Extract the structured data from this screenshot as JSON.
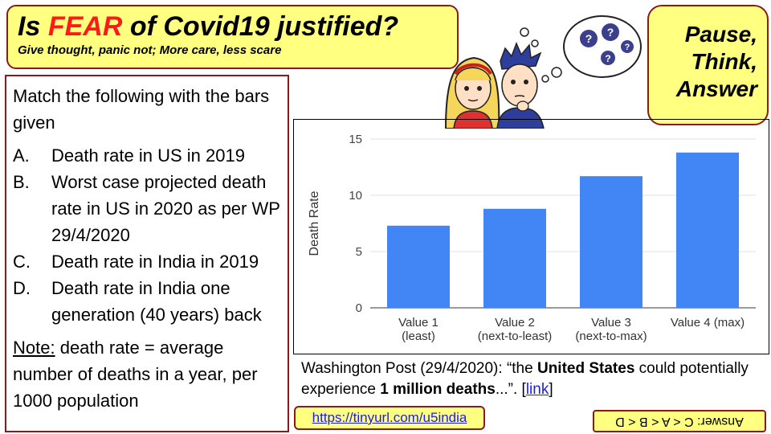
{
  "header": {
    "title_prefix": "Is ",
    "title_highlight": "FEAR",
    "title_suffix": " of Covid19 justified?",
    "subtitle": "Give thought, panic not; More care, less scare"
  },
  "pause": {
    "line1": "Pause,",
    "line2": "Think,",
    "line3": "Answer"
  },
  "question": {
    "intro": "Match the following with the bars given",
    "options": [
      {
        "letter": "A.",
        "text": "Death rate in US in 2019"
      },
      {
        "letter": "B.",
        "text": "Worst case projected death rate in US in 2020 as per WP 29/4/2020"
      },
      {
        "letter": "C.",
        "text": "Death rate in India in 2019"
      },
      {
        "letter": "D.",
        "text": "Death rate in India one generation (40 years) back"
      }
    ],
    "note_label": "Note:",
    "note_text": " death rate = average number of deaths in a year, per 1000 population"
  },
  "chart_data": {
    "type": "bar",
    "categories": [
      [
        "Value 1",
        "(least)"
      ],
      [
        "Value 2",
        "(next-to-least)"
      ],
      [
        "Value 3",
        "(next-to-max)"
      ],
      [
        "Value 4 (max)",
        ""
      ]
    ],
    "values": [
      7.3,
      8.8,
      11.7,
      13.8
    ],
    "ylabel": "Death Rate",
    "xlabel": "",
    "ylim": [
      0,
      15
    ],
    "yticks": [
      0,
      5,
      10,
      15
    ],
    "grid": true,
    "bar_color": "#4285f4"
  },
  "caption": {
    "prefix": "Washington Post (29/4/2020): “the ",
    "bold1": "United States",
    "mid": " could potentially experience ",
    "bold2": "1 million deaths",
    "suffix": "...”. [",
    "link": "link",
    "end": "]"
  },
  "url": "https://tinyurl.com/u5india",
  "answer": "Answer: C < A < B < D",
  "colors": {
    "box_fill": "#ffff80",
    "box_border": "#8b1a1a",
    "fear": "#ff1a1a",
    "link": "#1a1aff"
  }
}
